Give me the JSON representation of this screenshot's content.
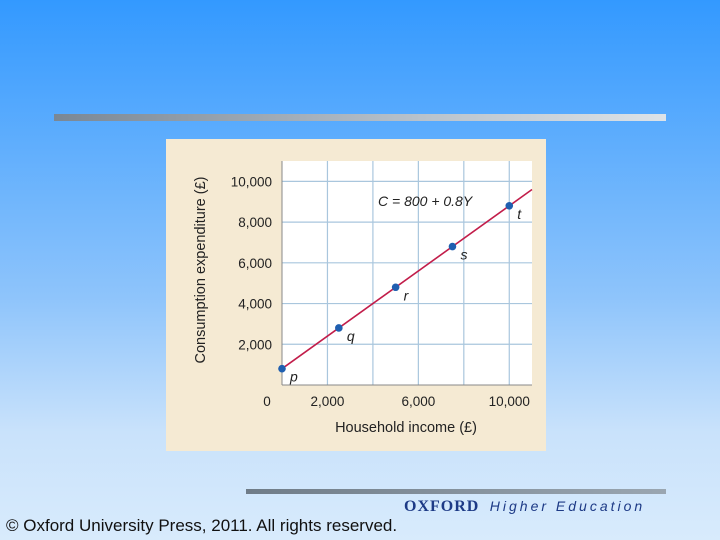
{
  "footer": {
    "copyright": "© Oxford University Press, 2011. All rights reserved.",
    "brand_oxford": "OXFORD",
    "brand_he": "Higher Education"
  },
  "colors": {
    "line": "#c21d4a",
    "point": "#1f5fb0",
    "grid": "#a9c6dd",
    "plot_bg": "#ffffff",
    "panel_bg": "#f5ead3"
  },
  "chart_data": {
    "type": "line",
    "title": "",
    "xlabel": "Household income (£)",
    "ylabel": "Consumption expenditure (£)",
    "xlim": [
      0,
      11000
    ],
    "ylim": [
      0,
      11000
    ],
    "x_ticks": [
      {
        "value": 0,
        "label": "0"
      },
      {
        "value": 2000,
        "label": "2,000"
      },
      {
        "value": 6000,
        "label": "6,000"
      },
      {
        "value": 10000,
        "label": "10,000"
      }
    ],
    "y_ticks": [
      {
        "value": 2000,
        "label": "2,000"
      },
      {
        "value": 4000,
        "label": "4,000"
      },
      {
        "value": 6000,
        "label": "6,000"
      },
      {
        "value": 8000,
        "label": "8,000"
      },
      {
        "value": 10000,
        "label": "10,000"
      }
    ],
    "x_grid": [
      2000,
      4000,
      6000,
      8000,
      10000
    ],
    "y_grid": [
      2000,
      4000,
      6000,
      8000,
      10000
    ],
    "grid": true,
    "series": [
      {
        "equation": "C = 800 + 0.8Y",
        "intercept": 800,
        "slope": 0.8,
        "x_range": [
          0,
          11000
        ]
      }
    ],
    "points": [
      {
        "label": "p",
        "x": 0,
        "y": 800
      },
      {
        "label": "q",
        "x": 2500,
        "y": 2800
      },
      {
        "label": "r",
        "x": 5000,
        "y": 4800
      },
      {
        "label": "s",
        "x": 7500,
        "y": 6800
      },
      {
        "label": "t",
        "x": 10000,
        "y": 8800
      }
    ]
  }
}
